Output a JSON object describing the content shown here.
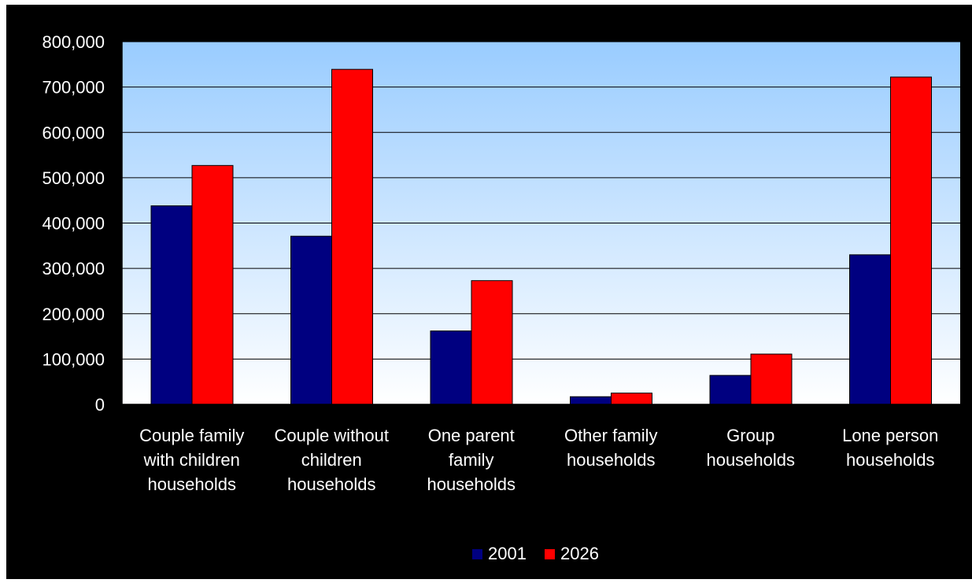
{
  "chart_data": {
    "type": "bar",
    "categories": [
      [
        "Couple family",
        "with children",
        "households"
      ],
      [
        "Couple without",
        "children",
        "households"
      ],
      [
        "One parent",
        "family",
        "households"
      ],
      [
        "Other family",
        "households"
      ],
      [
        "Group",
        "households"
      ],
      [
        "Lone person",
        "households"
      ]
    ],
    "series": [
      {
        "name": "2001",
        "color": "#000080",
        "values": [
          438000,
          371000,
          162000,
          17000,
          64000,
          330000
        ]
      },
      {
        "name": "2026",
        "color": "#ff0000",
        "values": [
          527000,
          739000,
          273000,
          25000,
          111000,
          722000
        ]
      }
    ],
    "ylim": [
      0,
      800000
    ],
    "yticks": [
      0,
      100000,
      200000,
      300000,
      400000,
      500000,
      600000,
      700000,
      800000
    ],
    "ytick_labels": [
      "0",
      "100,000",
      "200,000",
      "300,000",
      "400,000",
      "500,000",
      "600,000",
      "700,000",
      "800,000"
    ],
    "grid": true,
    "legend_position": "bottom",
    "colors": {
      "background": "#000000",
      "plot_top": "#99ccff",
      "plot_bottom": "#ffffff",
      "gridline": "#000000"
    }
  }
}
